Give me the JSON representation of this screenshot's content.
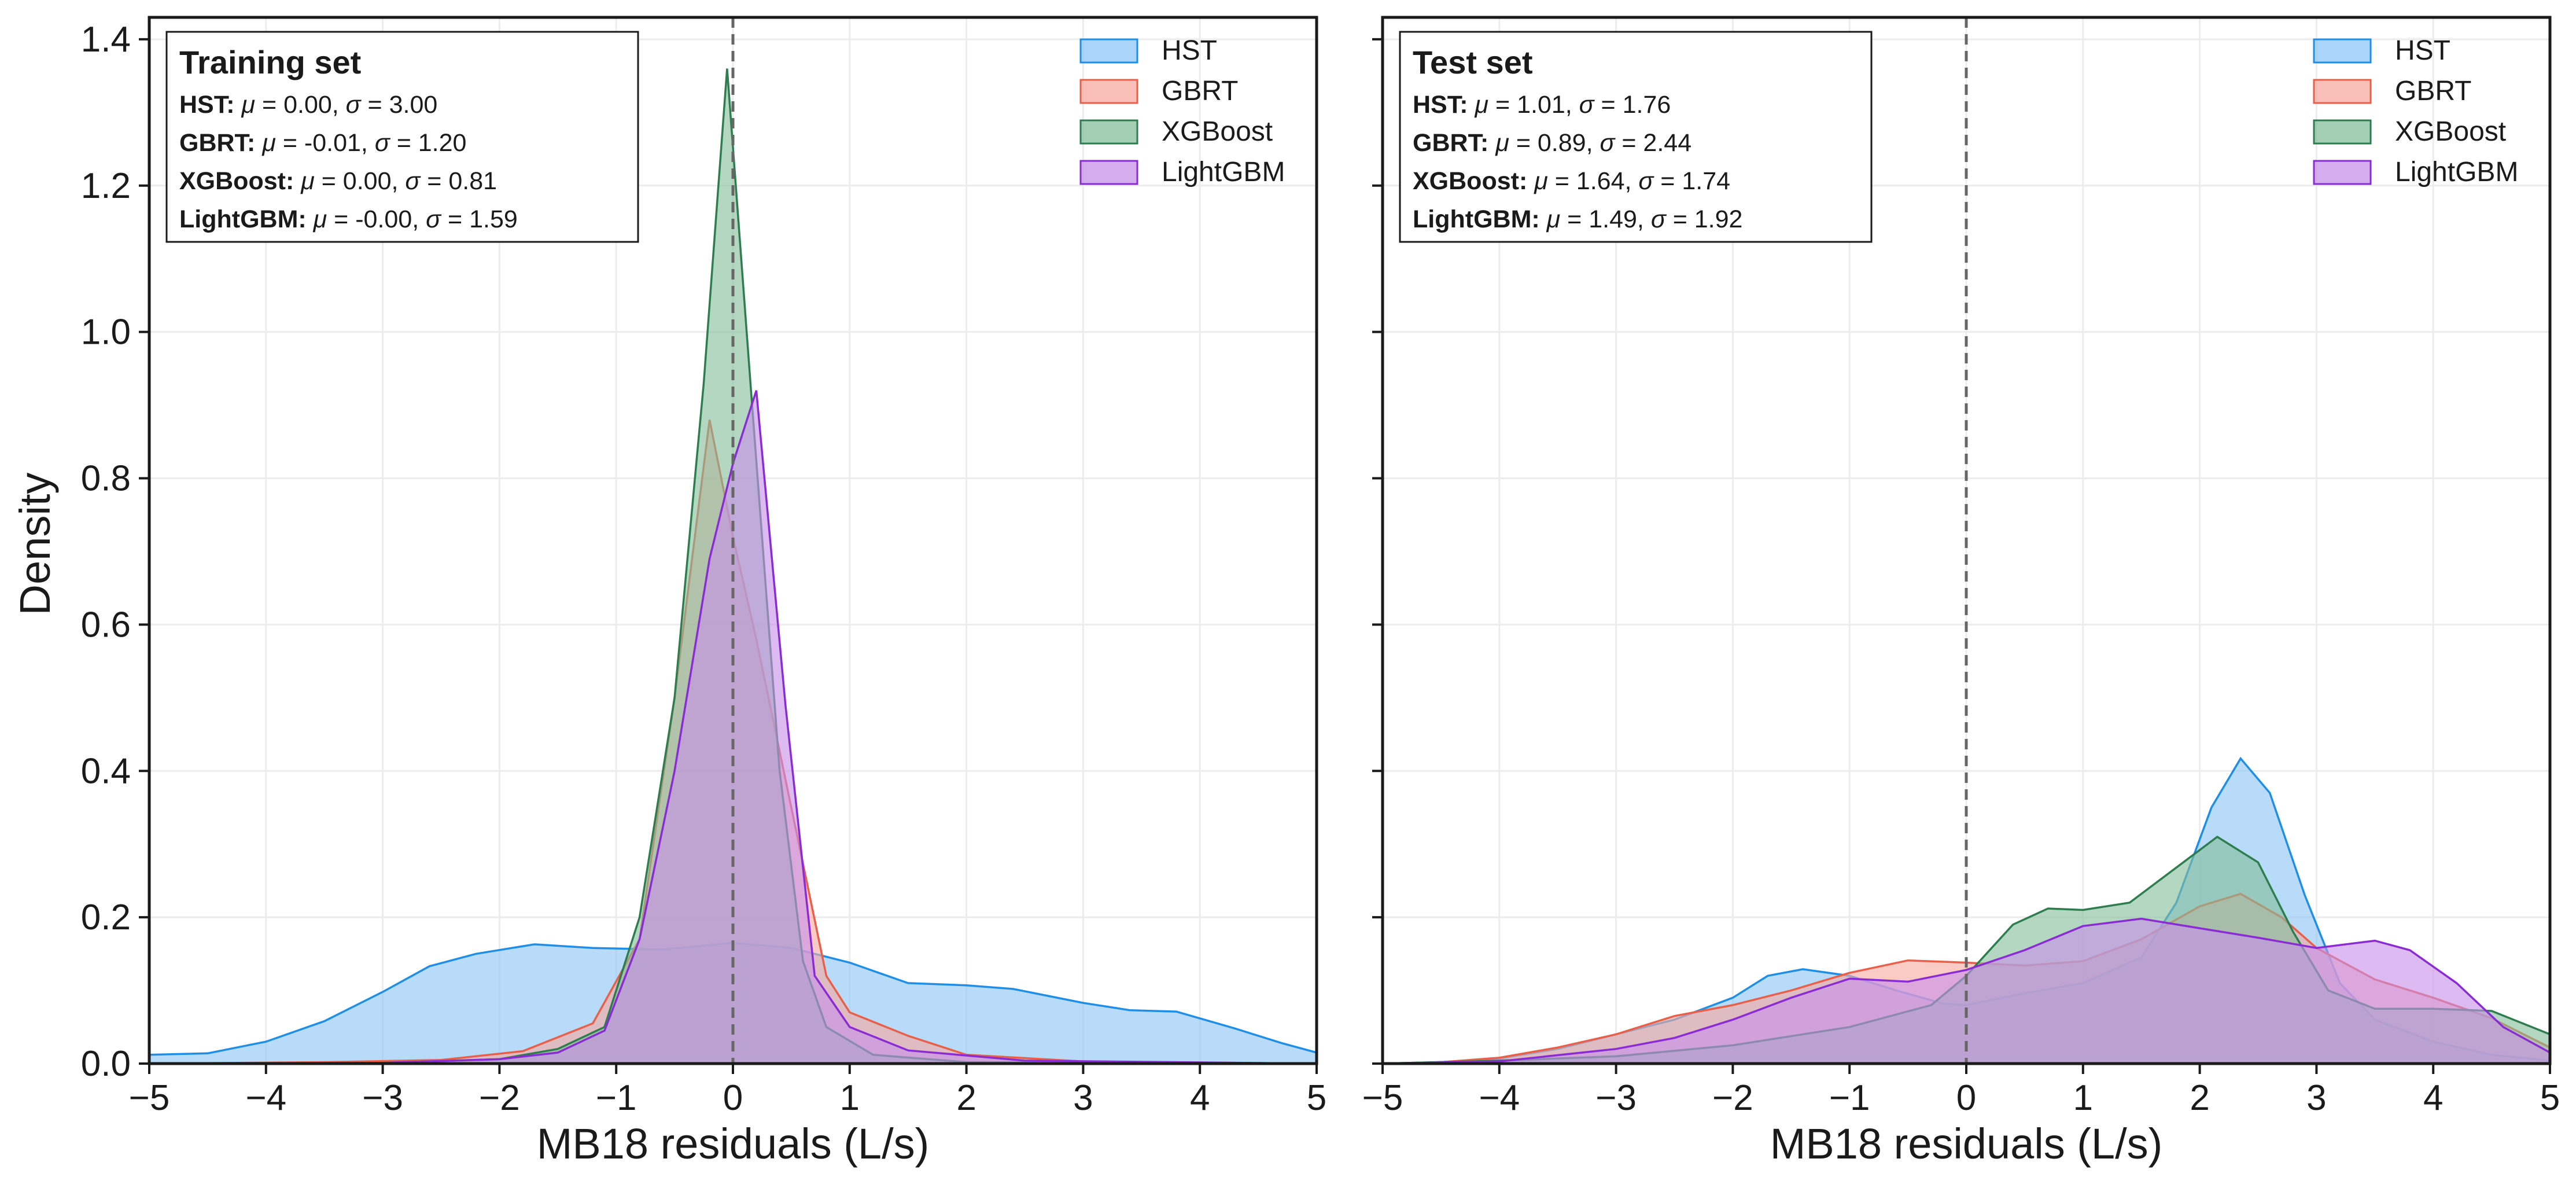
{
  "figure": {
    "ylabel": "Density",
    "xlim": [
      -5,
      5
    ],
    "ylim": [
      0,
      1.43
    ],
    "x_ticks": [
      -5,
      -4,
      -3,
      -2,
      -1,
      0,
      1,
      2,
      3,
      4,
      5
    ],
    "y_ticks": [
      0.0,
      0.2,
      0.4,
      0.6,
      0.8,
      1.0,
      1.2,
      1.4
    ],
    "x_tick_labels": [
      "−5",
      "−4",
      "−3",
      "−2",
      "−1",
      "0",
      "1",
      "2",
      "3",
      "4",
      "5"
    ],
    "y_tick_labels": [
      "0.0",
      "0.2",
      "0.4",
      "0.6",
      "0.8",
      "1.0",
      "1.2",
      "1.4"
    ],
    "reference_line_x": 0,
    "grid": true,
    "shared_y": true,
    "legend_position": "top-right",
    "colors": {
      "HST": {
        "fill": "#8ec5f7",
        "line": "#1f8ee6"
      },
      "GBRT": {
        "fill": "#f7aaa0",
        "line": "#e8604a"
      },
      "XGBoost": {
        "fill": "#84bf9b",
        "line": "#2e7d4f"
      },
      "LightGBM": {
        "fill": "#c891ea",
        "line": "#8a2bd4"
      }
    }
  },
  "chart_data": [
    {
      "type": "area",
      "title": "Training set",
      "xlabel": "MB18 residuals (L/s)",
      "ylabel": "Density",
      "xlim": [
        -5,
        5
      ],
      "ylim": [
        0,
        1.43
      ],
      "grid": true,
      "legend_position": "top-right",
      "stats": [
        {
          "name": "HST",
          "mu": "0.00",
          "sigma": "3.00"
        },
        {
          "name": "GBRT",
          "mu": "-0.01",
          "sigma": "1.20"
        },
        {
          "name": "XGBoost",
          "mu": "0.00",
          "sigma": "0.81"
        },
        {
          "name": "LightGBM",
          "mu": "-0.00",
          "sigma": "1.59"
        }
      ],
      "series": [
        {
          "name": "HST",
          "points": [
            [
              -5.0,
              0.012
            ],
            [
              -4.5,
              0.014
            ],
            [
              -4.0,
              0.03
            ],
            [
              -3.5,
              0.058
            ],
            [
              -3.0,
              0.098
            ],
            [
              -2.6,
              0.133
            ],
            [
              -2.2,
              0.15
            ],
            [
              -1.7,
              0.163
            ],
            [
              -1.2,
              0.158
            ],
            [
              -0.6,
              0.156
            ],
            [
              0.0,
              0.165
            ],
            [
              0.5,
              0.158
            ],
            [
              1.0,
              0.138
            ],
            [
              1.5,
              0.11
            ],
            [
              2.0,
              0.107
            ],
            [
              2.4,
              0.102
            ],
            [
              3.0,
              0.083
            ],
            [
              3.4,
              0.073
            ],
            [
              3.8,
              0.071
            ],
            [
              4.3,
              0.048
            ],
            [
              4.7,
              0.028
            ],
            [
              5.0,
              0.015
            ]
          ]
        },
        {
          "name": "GBRT",
          "points": [
            [
              -5.0,
              0.0
            ],
            [
              -3.5,
              0.002
            ],
            [
              -2.5,
              0.005
            ],
            [
              -1.8,
              0.017
            ],
            [
              -1.2,
              0.055
            ],
            [
              -0.8,
              0.17
            ],
            [
              -0.5,
              0.5
            ],
            [
              -0.2,
              0.88
            ],
            [
              0.0,
              0.72
            ],
            [
              0.2,
              0.58
            ],
            [
              0.5,
              0.35
            ],
            [
              0.8,
              0.12
            ],
            [
              1.0,
              0.07
            ],
            [
              1.5,
              0.038
            ],
            [
              2.0,
              0.012
            ],
            [
              3.0,
              0.003
            ],
            [
              5.0,
              0.0
            ]
          ]
        },
        {
          "name": "XGBoost",
          "points": [
            [
              -5.0,
              0.0
            ],
            [
              -3.0,
              0.001
            ],
            [
              -2.0,
              0.006
            ],
            [
              -1.5,
              0.02
            ],
            [
              -1.1,
              0.05
            ],
            [
              -0.8,
              0.2
            ],
            [
              -0.5,
              0.5
            ],
            [
              -0.25,
              0.93
            ],
            [
              -0.05,
              1.36
            ],
            [
              0.15,
              0.93
            ],
            [
              0.4,
              0.4
            ],
            [
              0.6,
              0.14
            ],
            [
              0.8,
              0.05
            ],
            [
              1.2,
              0.012
            ],
            [
              2.0,
              0.002
            ],
            [
              5.0,
              0.0
            ]
          ]
        },
        {
          "name": "LightGBM",
          "points": [
            [
              -5.0,
              0.0
            ],
            [
              -3.0,
              0.001
            ],
            [
              -2.0,
              0.006
            ],
            [
              -1.5,
              0.015
            ],
            [
              -1.1,
              0.045
            ],
            [
              -0.8,
              0.17
            ],
            [
              -0.5,
              0.4
            ],
            [
              -0.2,
              0.69
            ],
            [
              0.0,
              0.82
            ],
            [
              0.2,
              0.92
            ],
            [
              0.45,
              0.49
            ],
            [
              0.7,
              0.12
            ],
            [
              1.0,
              0.05
            ],
            [
              1.5,
              0.018
            ],
            [
              2.5,
              0.004
            ],
            [
              5.0,
              0.0
            ]
          ]
        }
      ]
    },
    {
      "type": "area",
      "title": "Test set",
      "xlabel": "MB18 residuals (L/s)",
      "ylabel": "",
      "xlim": [
        -5,
        5
      ],
      "ylim": [
        0,
        1.43
      ],
      "grid": true,
      "legend_position": "top-right",
      "stats": [
        {
          "name": "HST",
          "mu": "1.01",
          "sigma": "1.76"
        },
        {
          "name": "GBRT",
          "mu": "0.89",
          "sigma": "2.44"
        },
        {
          "name": "XGBoost",
          "mu": "1.64",
          "sigma": "1.74"
        },
        {
          "name": "LightGBM",
          "mu": "1.49",
          "sigma": "1.92"
        }
      ],
      "series": [
        {
          "name": "HST",
          "points": [
            [
              -5.0,
              0.0
            ],
            [
              -4.5,
              0.002
            ],
            [
              -4.0,
              0.007
            ],
            [
              -3.5,
              0.02
            ],
            [
              -3.0,
              0.04
            ],
            [
              -2.5,
              0.06
            ],
            [
              -2.0,
              0.09
            ],
            [
              -1.7,
              0.12
            ],
            [
              -1.4,
              0.129
            ],
            [
              -1.0,
              0.12
            ],
            [
              -0.6,
              0.1
            ],
            [
              -0.2,
              0.082
            ],
            [
              0.0,
              0.08
            ],
            [
              0.5,
              0.096
            ],
            [
              1.0,
              0.11
            ],
            [
              1.5,
              0.145
            ],
            [
              1.8,
              0.22
            ],
            [
              2.1,
              0.35
            ],
            [
              2.35,
              0.417
            ],
            [
              2.6,
              0.37
            ],
            [
              2.9,
              0.23
            ],
            [
              3.2,
              0.11
            ],
            [
              3.5,
              0.06
            ],
            [
              4.0,
              0.03
            ],
            [
              4.5,
              0.012
            ],
            [
              5.0,
              0.004
            ]
          ]
        },
        {
          "name": "GBRT",
          "points": [
            [
              -5.0,
              0.0
            ],
            [
              -4.5,
              0.002
            ],
            [
              -4.0,
              0.008
            ],
            [
              -3.5,
              0.022
            ],
            [
              -3.0,
              0.04
            ],
            [
              -2.5,
              0.065
            ],
            [
              -2.0,
              0.08
            ],
            [
              -1.5,
              0.1
            ],
            [
              -1.0,
              0.124
            ],
            [
              -0.5,
              0.141
            ],
            [
              0.0,
              0.138
            ],
            [
              0.5,
              0.134
            ],
            [
              1.0,
              0.14
            ],
            [
              1.5,
              0.17
            ],
            [
              2.0,
              0.215
            ],
            [
              2.35,
              0.232
            ],
            [
              2.7,
              0.2
            ],
            [
              3.0,
              0.158
            ],
            [
              3.5,
              0.115
            ],
            [
              4.0,
              0.09
            ],
            [
              4.5,
              0.062
            ],
            [
              5.0,
              0.022
            ]
          ]
        },
        {
          "name": "XGBoost",
          "points": [
            [
              -5.0,
              0.0
            ],
            [
              -4.0,
              0.004
            ],
            [
              -3.0,
              0.01
            ],
            [
              -2.0,
              0.025
            ],
            [
              -1.0,
              0.05
            ],
            [
              -0.3,
              0.08
            ],
            [
              0.0,
              0.12
            ],
            [
              0.4,
              0.19
            ],
            [
              0.7,
              0.212
            ],
            [
              1.0,
              0.21
            ],
            [
              1.4,
              0.22
            ],
            [
              1.8,
              0.268
            ],
            [
              2.15,
              0.31
            ],
            [
              2.5,
              0.275
            ],
            [
              2.8,
              0.18
            ],
            [
              3.1,
              0.1
            ],
            [
              3.5,
              0.075
            ],
            [
              4.0,
              0.075
            ],
            [
              4.5,
              0.072
            ],
            [
              5.0,
              0.04
            ]
          ]
        },
        {
          "name": "LightGBM",
          "points": [
            [
              -5.0,
              0.0
            ],
            [
              -4.0,
              0.003
            ],
            [
              -3.0,
              0.02
            ],
            [
              -2.5,
              0.035
            ],
            [
              -2.0,
              0.06
            ],
            [
              -1.5,
              0.09
            ],
            [
              -1.0,
              0.116
            ],
            [
              -0.5,
              0.112
            ],
            [
              0.0,
              0.128
            ],
            [
              0.5,
              0.155
            ],
            [
              1.0,
              0.188
            ],
            [
              1.5,
              0.198
            ],
            [
              2.0,
              0.185
            ],
            [
              2.5,
              0.172
            ],
            [
              3.0,
              0.158
            ],
            [
              3.5,
              0.168
            ],
            [
              3.8,
              0.155
            ],
            [
              4.2,
              0.11
            ],
            [
              4.6,
              0.05
            ],
            [
              5.0,
              0.015
            ]
          ]
        }
      ]
    }
  ]
}
